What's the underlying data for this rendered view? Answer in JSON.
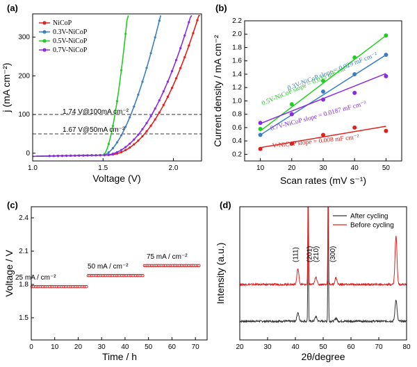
{
  "chart_data": [
    {
      "panel": "(a)",
      "type": "line",
      "xlabel": "Voltage (V)",
      "ylabel": "j (mA cm⁻²)",
      "xlim": [
        1.0,
        2.2
      ],
      "ylim": [
        -20,
        360
      ],
      "xticks": [
        "1.0",
        "1.5",
        "2.0"
      ],
      "yticks": [
        "0",
        "100",
        "200",
        "300"
      ],
      "series": [
        {
          "name": "NiCoP",
          "color": "#e0201c",
          "onset": 1.52,
          "k": 8.8,
          "n": 2.15
        },
        {
          "name": "0.3V-NiCoP",
          "color": "#3a7fc4",
          "onset": 1.5,
          "k": 16.5,
          "n": 1.7
        },
        {
          "name": "0.5V-NiCoP",
          "color": "#22cc22",
          "onset": 1.5,
          "k": 73.3,
          "n": 1.72
        },
        {
          "name": "0.7V-NiCoP",
          "color": "#8a2be2",
          "onset": 1.5,
          "k": 9.7,
          "n": 2.1
        }
      ],
      "annotations": [
        {
          "text": "1.74 V@100mA cm⁻²",
          "y": 100
        },
        {
          "text": "1.67 V@50mA cm⁻²",
          "y": 50
        }
      ]
    },
    {
      "panel": "(b)",
      "type": "scatter",
      "xlabel": "Scan rates (mV s⁻¹)",
      "ylabel": "Current density / mA cm⁻²",
      "xlim": [
        5,
        55
      ],
      "ylim": [
        0.1,
        2.2
      ],
      "xticks": [
        "10",
        "20",
        "30",
        "40",
        "50"
      ],
      "yticks": [
        "0.2",
        "0.4",
        "0.6",
        "0.8",
        "1.0",
        "1.2",
        "1.4",
        "1.6",
        "1.8",
        "2.0",
        "2.2"
      ],
      "x": [
        10,
        20,
        30,
        40,
        50
      ],
      "series": [
        {
          "name": "0.5V-NiCoP",
          "color": "#22cc22",
          "values": [
            0.58,
            0.95,
            1.3,
            1.65,
            1.98
          ],
          "fit": [
            0.55,
            1.98
          ],
          "label": "0.5V-NiCoP slope = 0.035 mF cm⁻²"
        },
        {
          "name": "0.3V-NiCoP",
          "color": "#3a7fc4",
          "values": [
            0.49,
            0.8,
            1.14,
            1.4,
            1.69
          ],
          "fit": [
            0.49,
            1.69
          ],
          "label": "0.3V-NiCoP slope = 0.029 mF cm⁻²"
        },
        {
          "name": "0.7V-NiCoP",
          "color": "#8a2be2",
          "values": [
            0.67,
            0.8,
            1.02,
            1.12,
            1.37
          ],
          "fit": [
            0.66,
            1.41
          ],
          "label": "0.7V-NiCoP slope = 0.0187 mF cm⁻²"
        },
        {
          "name": "V-NiCoP",
          "color": "#e0201c",
          "values": [
            0.28,
            0.36,
            0.49,
            0.6,
            0.55
          ],
          "fit": [
            0.3,
            0.62
          ],
          "label": "V-NiCoP slope = 0.008 mF cm⁻²"
        }
      ]
    },
    {
      "panel": "(c)",
      "type": "line",
      "xlabel": "Time / h",
      "ylabel": "Voltage / V",
      "xlim": [
        0,
        75
      ],
      "ylim": [
        1.3,
        2.5
      ],
      "xticks": [
        "0",
        "10",
        "20",
        "30",
        "40",
        "50",
        "60",
        "70"
      ],
      "yticks": [
        "1.5",
        "1.8",
        "2.1",
        "2.4"
      ],
      "color": "#cc1111",
      "segments": [
        {
          "label": "25 mA / cm⁻²",
          "t_start": 0,
          "t_end": 24,
          "voltage": 1.78
        },
        {
          "label": "50 mA / cm⁻²",
          "t_start": 24,
          "t_end": 48,
          "voltage": 1.88
        },
        {
          "label": "75 mA / cm⁻²",
          "t_start": 48,
          "t_end": 72,
          "voltage": 1.97
        }
      ]
    },
    {
      "panel": "(d)",
      "type": "line",
      "xlabel": "2θ/degree",
      "ylabel": "Intensity (a.u.)",
      "xlim": [
        20,
        80
      ],
      "xticks": [
        "20",
        "30",
        "40",
        "50",
        "60",
        "70",
        "80"
      ],
      "legend": [
        "After cycling",
        "Before cycling"
      ],
      "series": [
        {
          "name": "After cycling",
          "color": "#333333",
          "baseline": 0.0
        },
        {
          "name": "Before cycling",
          "color": "#e02020",
          "baseline": 1.0
        }
      ],
      "peaks": [
        {
          "label": "(111)",
          "x": 40.9,
          "h_after": 0.28,
          "h_before": 0.5
        },
        {
          "label": "(201)",
          "x": 44.6,
          "h_after": 4.0,
          "h_before": 4.0
        },
        {
          "label": "(210)",
          "x": 47.4,
          "h_after": 0.15,
          "h_before": 0.25
        },
        {
          "label": "",
          "x": 51.8,
          "h_after": 4.0,
          "h_before": 4.0
        },
        {
          "label": "(300)",
          "x": 54.6,
          "h_after": 0.1,
          "h_before": 0.22
        },
        {
          "label": "",
          "x": 76.2,
          "h_after": 0.7,
          "h_before": 1.55
        }
      ],
      "peak_labels": [
        {
          "text": "(111)",
          "x": 40.9
        },
        {
          "text": "(201)",
          "x": 45.9
        },
        {
          "text": "(210)",
          "x": 48.2
        },
        {
          "text": "(300)",
          "x": 54.3
        }
      ]
    }
  ]
}
